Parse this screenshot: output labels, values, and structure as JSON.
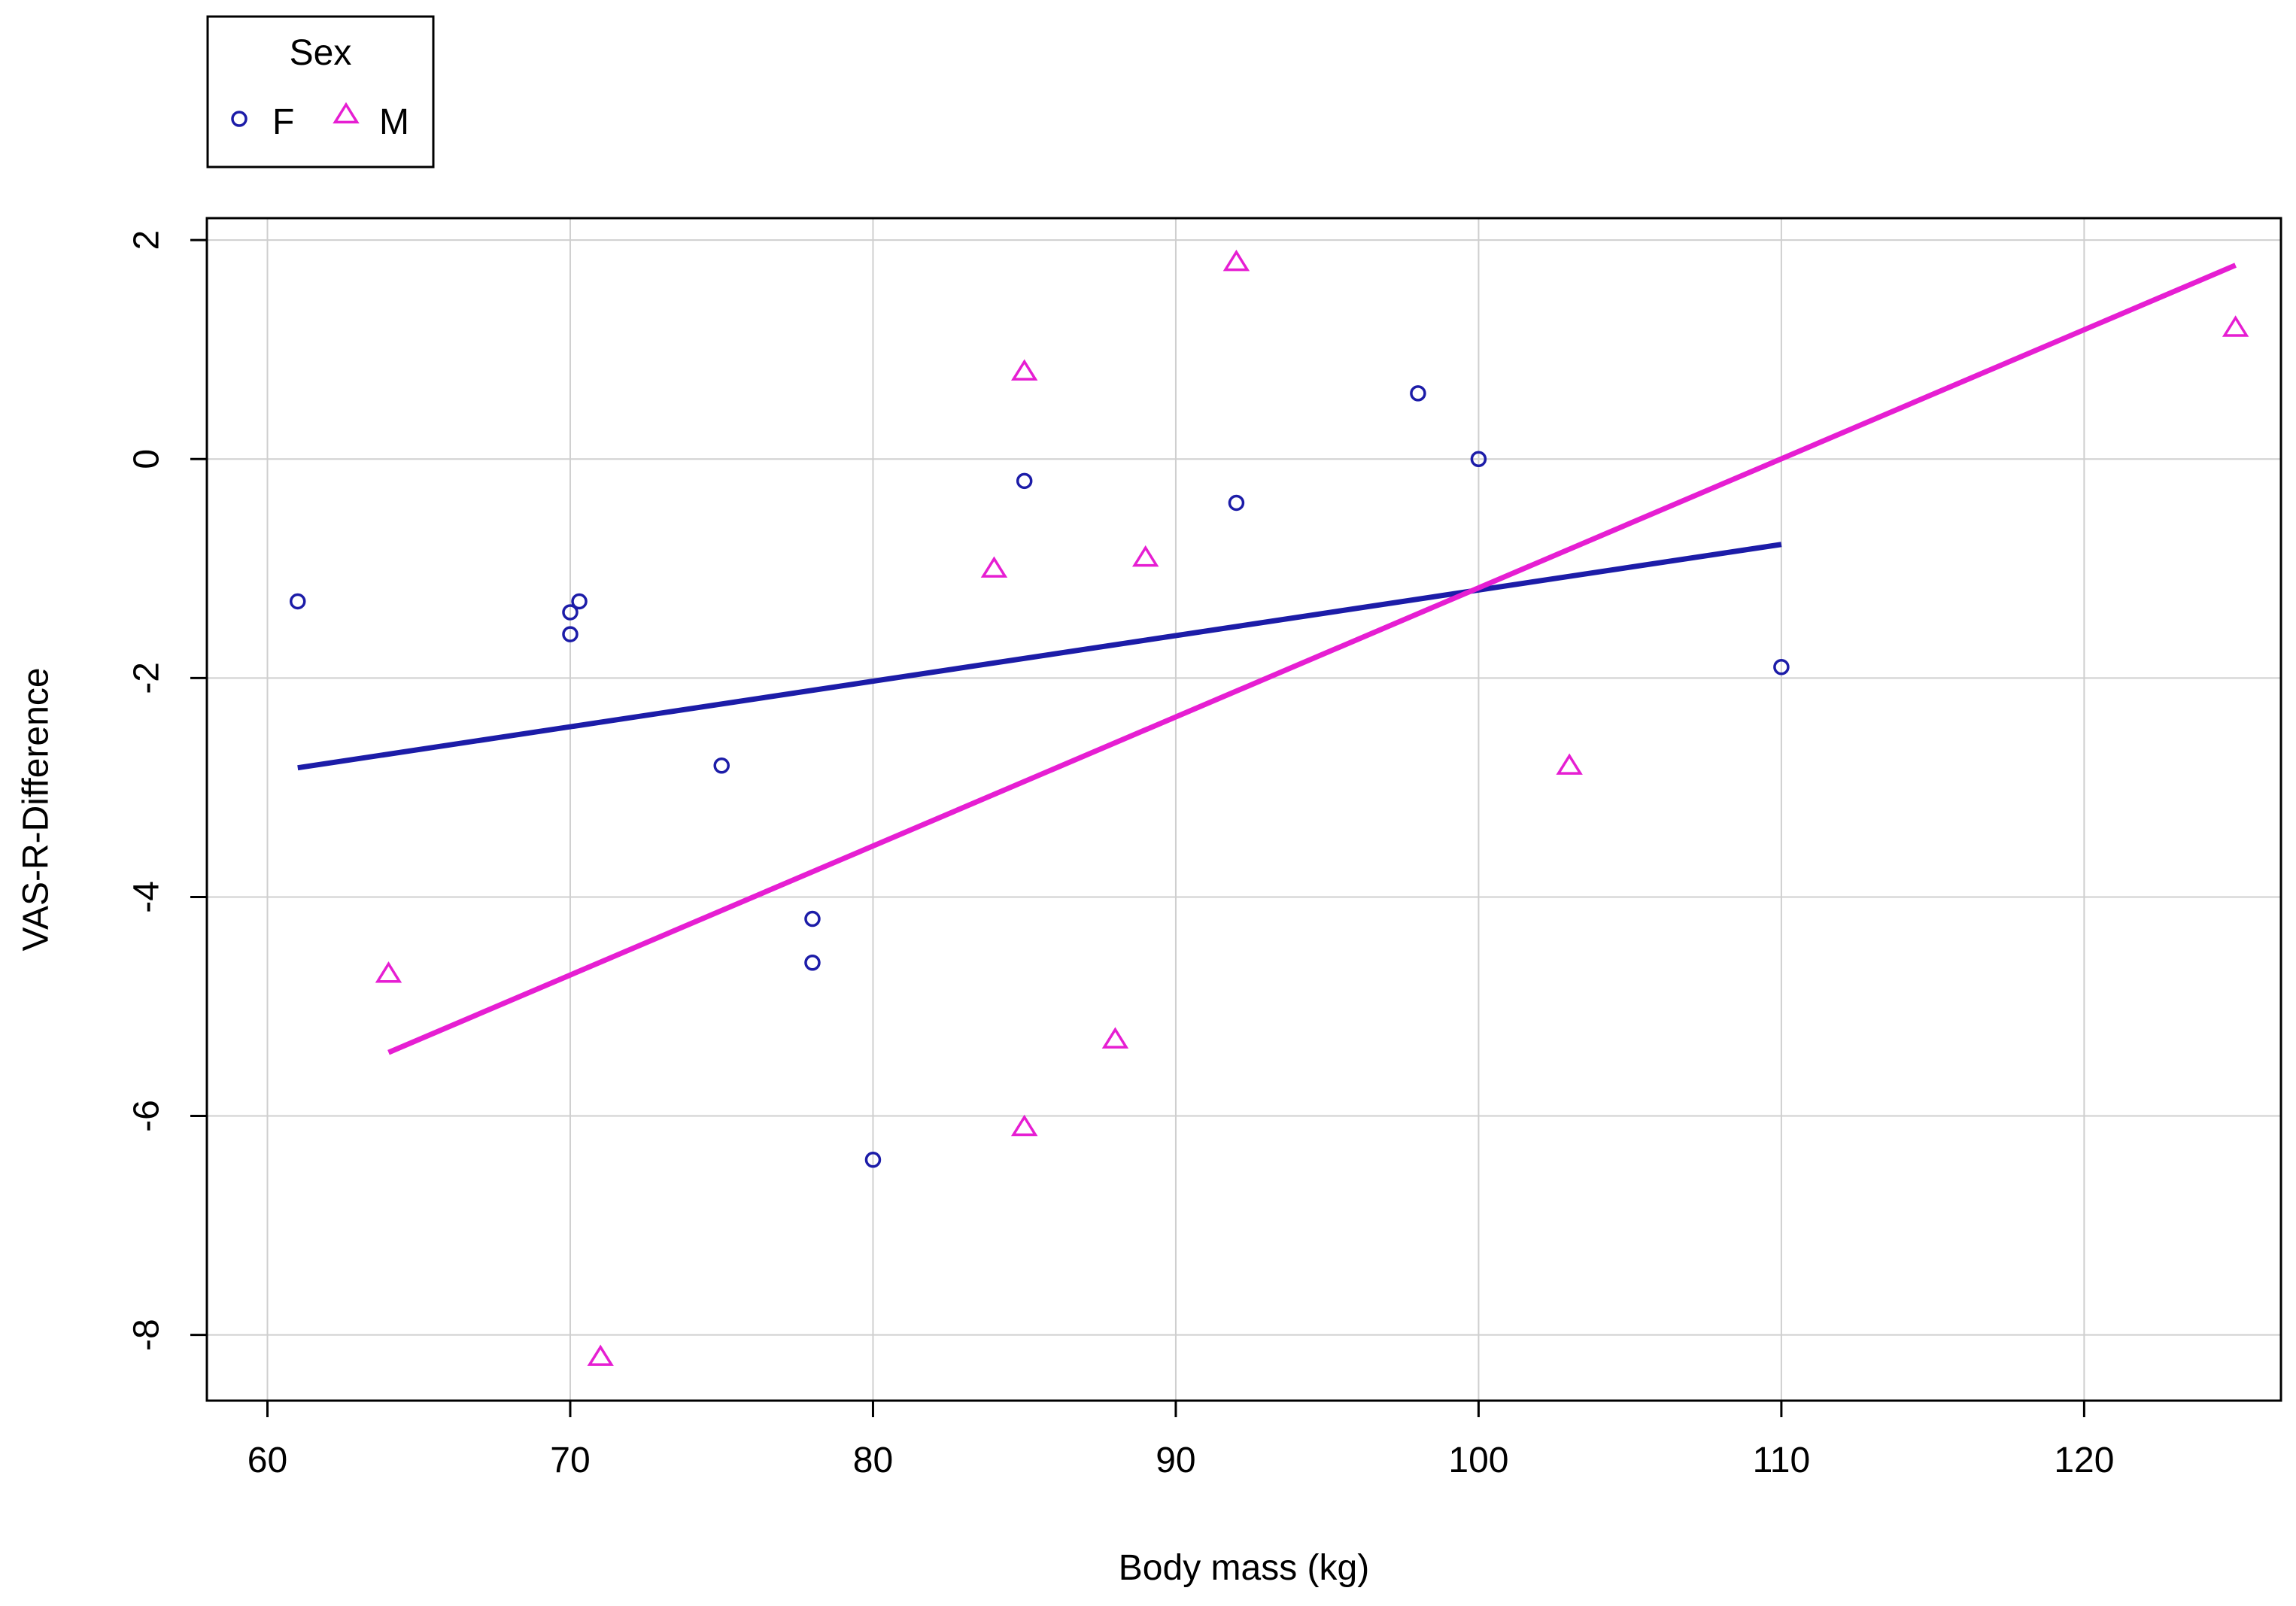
{
  "chart_data": {
    "type": "scatter",
    "title": "",
    "xlabel": "Body mass (kg)",
    "ylabel": "VAS-R-Difference",
    "xlim": [
      58,
      126.5
    ],
    "ylim": [
      -8.6,
      2.2
    ],
    "x_ticks": [
      60,
      70,
      80,
      90,
      100,
      110,
      120
    ],
    "y_ticks": [
      -8,
      -6,
      -4,
      -2,
      0,
      2
    ],
    "grid": true,
    "legend": {
      "title": "Sex",
      "placement": "top-left, outside plot"
    },
    "series": [
      {
        "name": "F",
        "marker": "circle",
        "color": "#1c1ca8",
        "points": [
          [
            61,
            -1.3
          ],
          [
            70,
            -1.4
          ],
          [
            70.3,
            -1.3
          ],
          [
            70,
            -1.6
          ],
          [
            75,
            -2.8
          ],
          [
            78,
            -4.2
          ],
          [
            78,
            -4.6
          ],
          [
            80,
            -6.4
          ],
          [
            85,
            -0.2
          ],
          [
            92,
            -0.4
          ],
          [
            98,
            0.6
          ],
          [
            100,
            0.0
          ],
          [
            110,
            -1.9
          ]
        ],
        "fit_line": [
          [
            61,
            -2.82
          ],
          [
            110,
            -0.78
          ]
        ]
      },
      {
        "name": "M",
        "marker": "triangle",
        "color": "#e61ed2",
        "points": [
          [
            64,
            -4.7
          ],
          [
            71,
            -8.2
          ],
          [
            84,
            -1.0
          ],
          [
            85,
            0.8
          ],
          [
            85,
            -6.1
          ],
          [
            88,
            -5.3
          ],
          [
            89,
            -0.9
          ],
          [
            92,
            1.8
          ],
          [
            103,
            -2.8
          ],
          [
            125,
            1.2
          ]
        ],
        "fit_line": [
          [
            64,
            -5.42
          ],
          [
            125,
            1.77
          ]
        ]
      }
    ]
  }
}
